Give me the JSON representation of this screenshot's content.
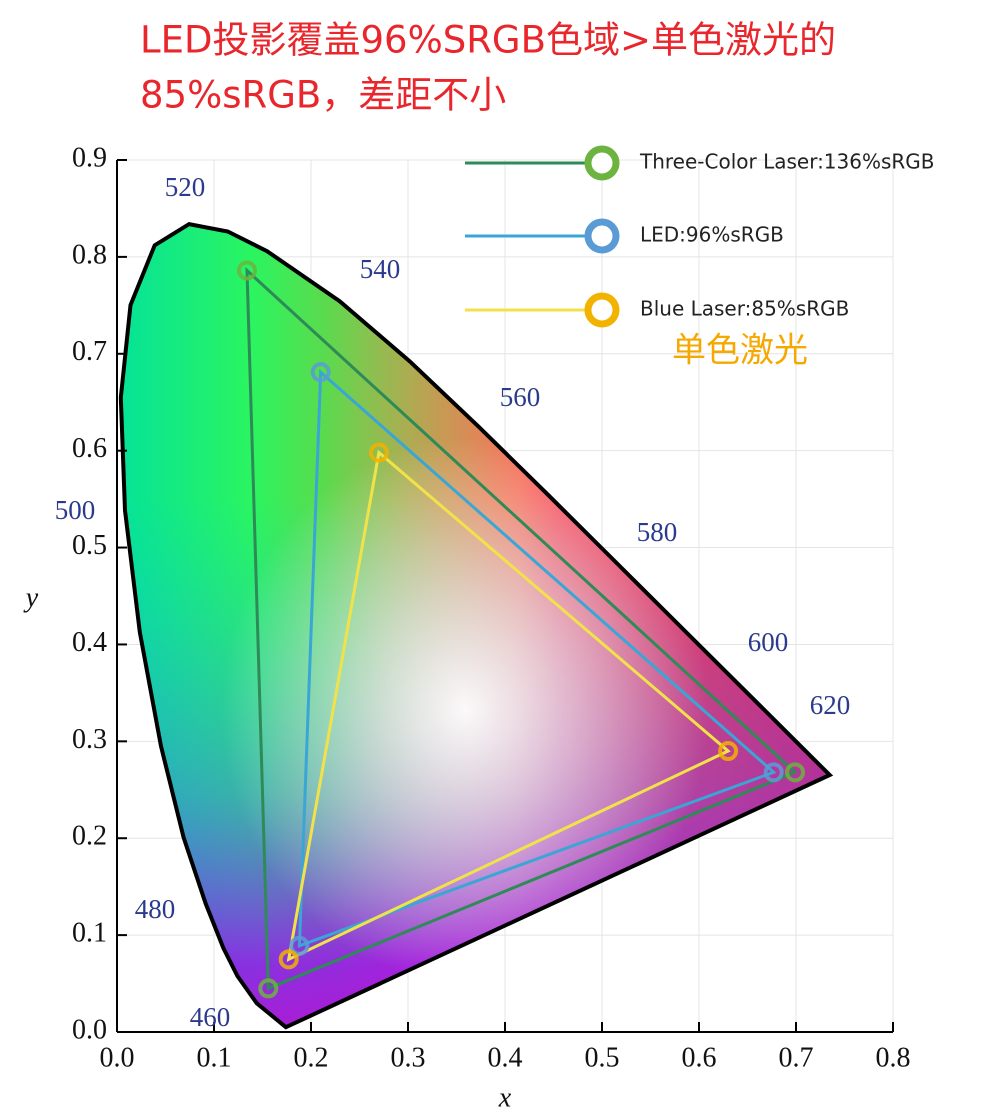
{
  "chart_data": {
    "type": "line",
    "title": [
      "LED投影覆盖96%SRGB色域>单色激光的",
      "85%sRGB，差距不小"
    ],
    "annotation": "单色激光",
    "xlabel": "x",
    "ylabel": "y",
    "wavelength_labels": [
      "460",
      "480",
      "500",
      "520",
      "540",
      "560",
      "580",
      "600",
      "620"
    ],
    "xlim": [
      0,
      0.8
    ],
    "ylim": [
      0,
      0.9
    ],
    "xticks": [
      {
        "value": 0,
        "label": "0.0"
      },
      {
        "value": 0.1,
        "label": "0.1"
      },
      {
        "value": 0.2,
        "label": "0.2"
      },
      {
        "value": 0.3,
        "label": "0.3"
      },
      {
        "value": 0.4,
        "label": "0.4"
      },
      {
        "value": 0.5,
        "label": "0.5"
      },
      {
        "value": 0.6,
        "label": "0.6"
      },
      {
        "value": 0.7,
        "label": "0.7"
      },
      {
        "value": 0.8,
        "label": "0.8"
      }
    ],
    "yticks": [
      {
        "value": 0,
        "label": "0.0"
      },
      {
        "value": 0.1,
        "label": "0.1"
      },
      {
        "value": 0.2,
        "label": "0.2"
      },
      {
        "value": 0.3,
        "label": "0.3"
      },
      {
        "value": 0.4,
        "label": "0.4"
      },
      {
        "value": 0.5,
        "label": "0.5"
      },
      {
        "value": 0.6,
        "label": "0.6"
      },
      {
        "value": 0.7,
        "label": "0.7"
      },
      {
        "value": 0.8,
        "label": "0.8"
      },
      {
        "value": 0.9,
        "label": "0.9"
      }
    ],
    "grid": true,
    "legend": "upper right",
    "series": [
      {
        "name": "Three-Color Laser:136%sRGB",
        "color": "#2e8b57",
        "marker_color": "#6cb33f",
        "x": [
          0.134,
          0.699,
          0.156
        ],
        "values": [
          0.786,
          0.268,
          0.045
        ]
      },
      {
        "name": "LED:96%sRGB",
        "color": "#3aa6d6",
        "marker_color": "#5b9bd5",
        "x": [
          0.21,
          0.677,
          0.188
        ],
        "values": [
          0.681,
          0.268,
          0.089
        ]
      },
      {
        "name": "Blue Laser:85%sRGB",
        "color": "#f2e24a",
        "marker_color": "#f2b200",
        "x": [
          0.27,
          0.63,
          0.177
        ],
        "values": [
          0.598,
          0.29,
          0.075
        ]
      }
    ]
  }
}
